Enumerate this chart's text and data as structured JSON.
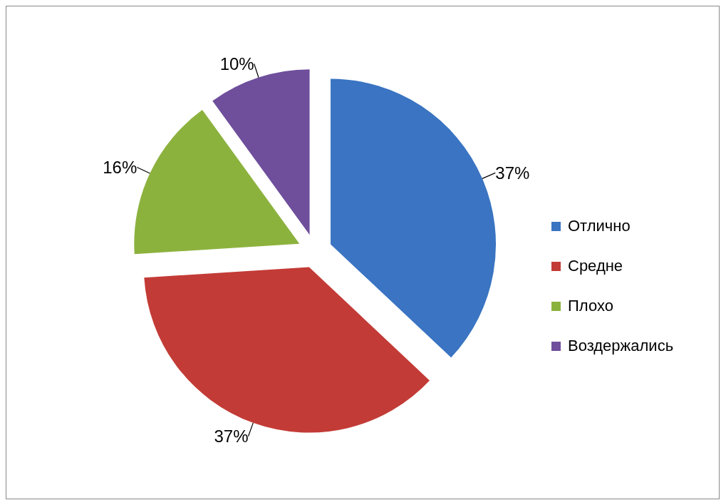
{
  "chart_data": {
    "type": "pie",
    "categories": [
      "Отлично",
      "Средне",
      "Плохо",
      "Воздержались"
    ],
    "values": [
      37,
      37,
      16,
      10
    ],
    "colors": [
      "#3a74c2",
      "#c33b36",
      "#8cb23e",
      "#6f4f9c"
    ],
    "value_labels": [
      "37%",
      "37%",
      "16%",
      "10%"
    ],
    "legend": "right"
  }
}
